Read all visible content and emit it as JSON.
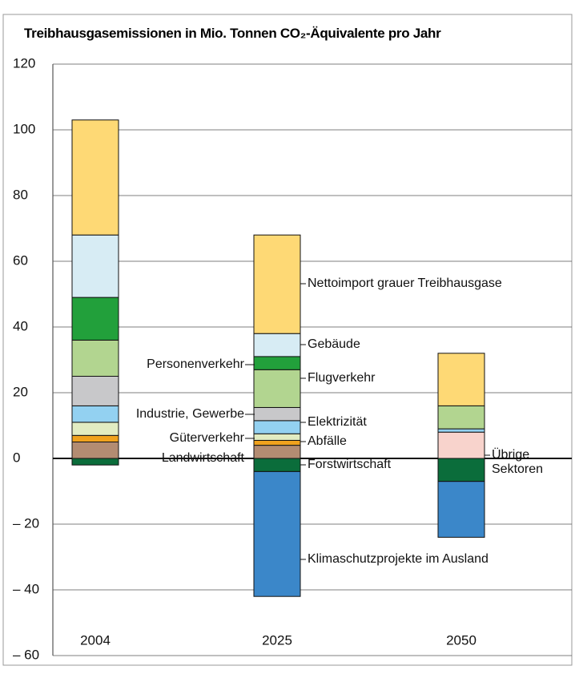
{
  "chart_data": {
    "type": "stacked_bar",
    "title": "Treibhausgasemissionen in Mio. Tonnen CO₂-Äquivalente pro Jahr",
    "categories": [
      "2004",
      "2025",
      "2050"
    ],
    "series": [
      {
        "name": "Übrige Sektoren",
        "color": "#f8d3cc",
        "values": [
          0,
          0,
          8
        ]
      },
      {
        "name": "Landwirtschaft",
        "color": "#b38c72",
        "values": [
          5,
          4,
          0
        ]
      },
      {
        "name": "Abfälle",
        "color": "#f0a21e",
        "values": [
          2,
          1.5,
          0
        ]
      },
      {
        "name": "Güterverkehr",
        "color": "#e2ecc2",
        "values": [
          4,
          2,
          0
        ]
      },
      {
        "name": "Elektrizität",
        "color": "#93d1f1",
        "values": [
          5,
          4,
          1
        ]
      },
      {
        "name": "Industrie, Gewerbe",
        "color": "#c8c8ca",
        "values": [
          9,
          4,
          0
        ]
      },
      {
        "name": "Flugverkehr",
        "color": "#b2d590",
        "values": [
          11,
          11.5,
          7
        ]
      },
      {
        "name": "Personenverkehr",
        "color": "#22a03b",
        "values": [
          13,
          4,
          0
        ]
      },
      {
        "name": "Gebäude",
        "color": "#d7ecf4",
        "values": [
          19,
          7,
          0
        ]
      },
      {
        "name": "Nettoimport grauer Treibhausgase",
        "color": "#fed975",
        "values": [
          35,
          30,
          16
        ]
      },
      {
        "name": "Forstwirtschaft",
        "color": "#0b6d3b",
        "values": [
          -2,
          -4,
          -7
        ]
      },
      {
        "name": "Klimaschutzprojekte im Ausland",
        "color": "#3b87c9",
        "values": [
          0,
          -38,
          -17
        ]
      }
    ],
    "ylim": [
      -60,
      120
    ],
    "yticks": [
      {
        "value": -60,
        "label": "– 60"
      },
      {
        "value": -40,
        "label": "– 40"
      },
      {
        "value": -20,
        "label": "– 20"
      },
      0,
      20,
      40,
      60,
      80,
      100,
      120
    ],
    "grid": true
  }
}
